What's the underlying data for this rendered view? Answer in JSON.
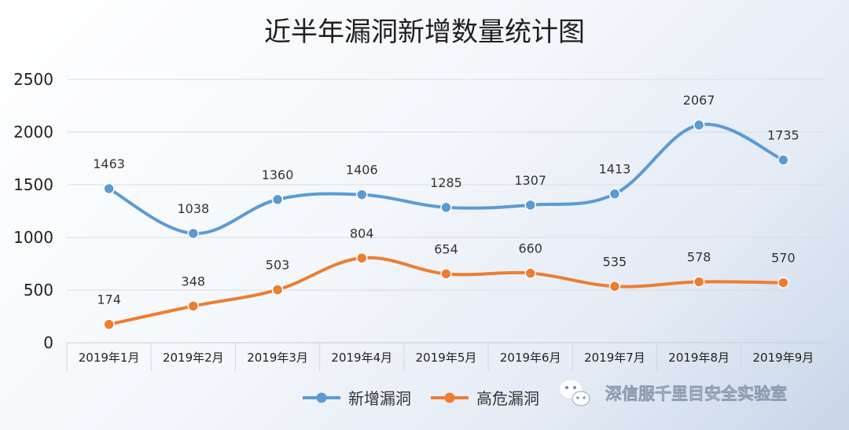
{
  "chart_data": {
    "type": "line",
    "title": "近半年漏洞新增数量统计图",
    "categories": [
      "2019年1月",
      "2019年2月",
      "2019年3月",
      "2019年4月",
      "2019年5月",
      "2019年6月",
      "2019年7月",
      "2019年8月",
      "2019年9月"
    ],
    "ylim": [
      0,
      2500
    ],
    "yticks": [
      0,
      500,
      1000,
      1500,
      2000,
      2500
    ],
    "grid": true,
    "legend_position": "bottom",
    "series": [
      {
        "name": "新增漏洞",
        "color": "#5b9bd5",
        "values": [
          1463,
          1038,
          1360,
          1406,
          1285,
          1307,
          1413,
          2067,
          1735
        ]
      },
      {
        "name": "高危漏洞",
        "color": "#ed7d31",
        "values": [
          174,
          348,
          503,
          804,
          654,
          660,
          535,
          578,
          570
        ]
      }
    ]
  },
  "watermark": {
    "text": "深信服千里目安全实验室",
    "icon": "wechat-icon"
  }
}
